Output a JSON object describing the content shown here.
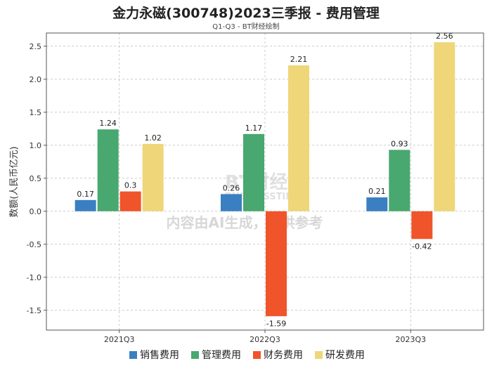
{
  "chart_data": {
    "type": "bar",
    "title": "金力永磁(300748)2023三季报 - 费用管理",
    "subtitle": "Q1-Q3 - BT财经绘制",
    "ylabel": "数额(人民币亿元)",
    "xlabel": "",
    "categories": [
      "2021Q3",
      "2022Q3",
      "2023Q3"
    ],
    "ylim": [
      -1.8,
      2.7
    ],
    "yticks": [
      -1.5,
      -1.0,
      -0.5,
      0.0,
      0.5,
      1.0,
      1.5,
      2.0,
      2.5
    ],
    "ytick_labels": [
      "-1.5",
      "-1.0",
      "-0.5",
      "0.0",
      "0.5",
      "1.0",
      "1.5",
      "2.0",
      "2.5"
    ],
    "grid": true,
    "legend_position": "bottom",
    "series": [
      {
        "name": "销售费用",
        "color": "#3a7fc1",
        "values": [
          0.17,
          0.26,
          0.21
        ],
        "labels": [
          "0.17",
          "0.26",
          "0.21"
        ]
      },
      {
        "name": "管理费用",
        "color": "#48a86f",
        "values": [
          1.24,
          1.17,
          0.93
        ],
        "labels": [
          "1.24",
          "1.17",
          "0.93"
        ]
      },
      {
        "name": "财务费用",
        "color": "#f0542a",
        "values": [
          0.3,
          -1.59,
          -0.42
        ],
        "labels": [
          "0.3",
          "-1.59",
          "-0.42"
        ]
      },
      {
        "name": "研发费用",
        "color": "#eed679",
        "values": [
          1.02,
          2.21,
          2.56
        ],
        "labels": [
          "1.02",
          "2.21",
          "2.56"
        ]
      }
    ]
  },
  "watermark": {
    "logo_text": "BT财经",
    "logo_sub": "BUSINESSTIMES",
    "notice": "内容由AI生成，仅供参考"
  }
}
